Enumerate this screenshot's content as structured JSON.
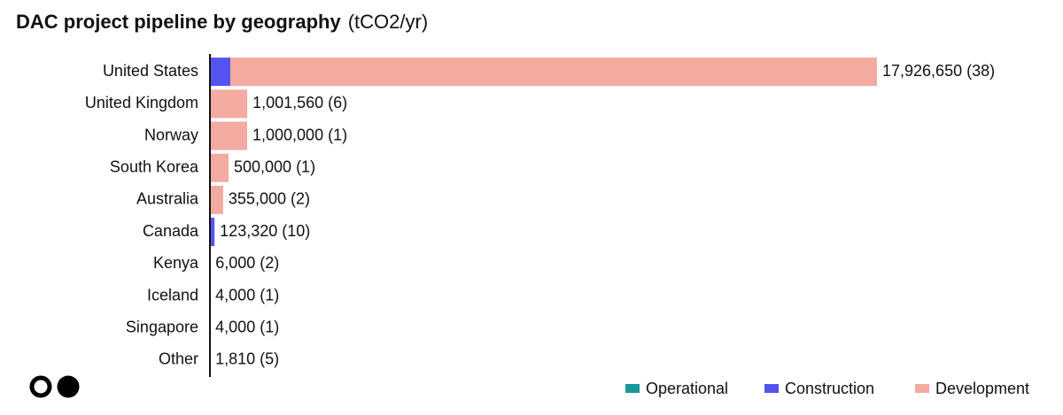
{
  "chart_data": {
    "type": "stacked-bar-horizontal",
    "title": "DAC project pipeline by geography",
    "subtitle": "(tCO2/yr)",
    "categories": [
      "United States",
      "United Kingdom",
      "Norway",
      "South Korea",
      "Australia",
      "Canada",
      "Kenya",
      "Iceland",
      "Singapore",
      "Other"
    ],
    "series": [
      {
        "name": "Operational",
        "color": "#17999b",
        "values": [
          0,
          0,
          0,
          0,
          0,
          0,
          0,
          4000,
          0,
          1810
        ]
      },
      {
        "name": "Construction",
        "color": "#5553ee",
        "values": [
          548000,
          0,
          0,
          0,
          0,
          123320,
          0,
          0,
          0,
          0
        ]
      },
      {
        "name": "Development",
        "color": "#f2aaa1",
        "values": [
          17378650,
          1001560,
          1000000,
          500000,
          355000,
          0,
          6000,
          0,
          4000,
          0
        ]
      }
    ],
    "value_labels": [
      "17,926,650 (38)",
      "1,001,560 (6)",
      "1,000,000 (1)",
      "500,000 (1)",
      "355,000 (2)",
      "123,320 (10)",
      "6,000 (2)",
      "4,000 (1)",
      "4,000 (1)",
      "1,810 (5)"
    ]
  }
}
